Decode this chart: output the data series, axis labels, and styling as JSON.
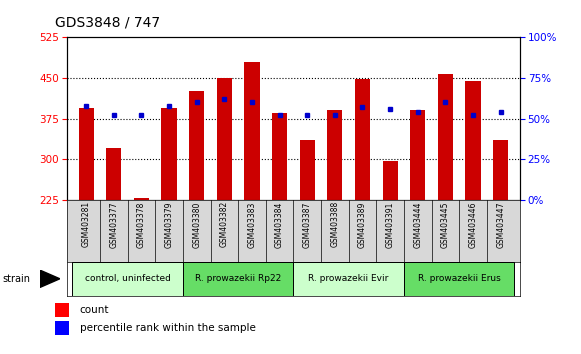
{
  "title": "GDS3848 / 747",
  "samples": [
    "GSM403281",
    "GSM403377",
    "GSM403378",
    "GSM403379",
    "GSM403380",
    "GSM403382",
    "GSM403383",
    "GSM403384",
    "GSM403387",
    "GSM403388",
    "GSM403389",
    "GSM403391",
    "GSM403444",
    "GSM403445",
    "GSM403446",
    "GSM403447"
  ],
  "counts": [
    395,
    320,
    228,
    395,
    425,
    450,
    480,
    385,
    335,
    390,
    448,
    296,
    390,
    458,
    445,
    335
  ],
  "percentiles": [
    58,
    52,
    52,
    58,
    60,
    62,
    60,
    52,
    52,
    52,
    57,
    56,
    54,
    60,
    52,
    54
  ],
  "groups": [
    {
      "label": "control, uninfected",
      "start": 0,
      "end": 4,
      "color": "#ccffcc"
    },
    {
      "label": "R. prowazekii Rp22",
      "start": 4,
      "end": 8,
      "color": "#66dd66"
    },
    {
      "label": "R. prowazekii Evir",
      "start": 8,
      "end": 12,
      "color": "#ccffcc"
    },
    {
      "label": "R. prowazekii Erus",
      "start": 12,
      "end": 16,
      "color": "#66dd66"
    }
  ],
  "ylim_left": [
    225,
    525
  ],
  "ylim_right": [
    0,
    100
  ],
  "yticks_left": [
    225,
    300,
    375,
    450,
    525
  ],
  "yticks_right": [
    0,
    25,
    50,
    75,
    100
  ],
  "bar_color": "#cc0000",
  "dot_color": "#0000cc",
  "bar_width": 0.55
}
